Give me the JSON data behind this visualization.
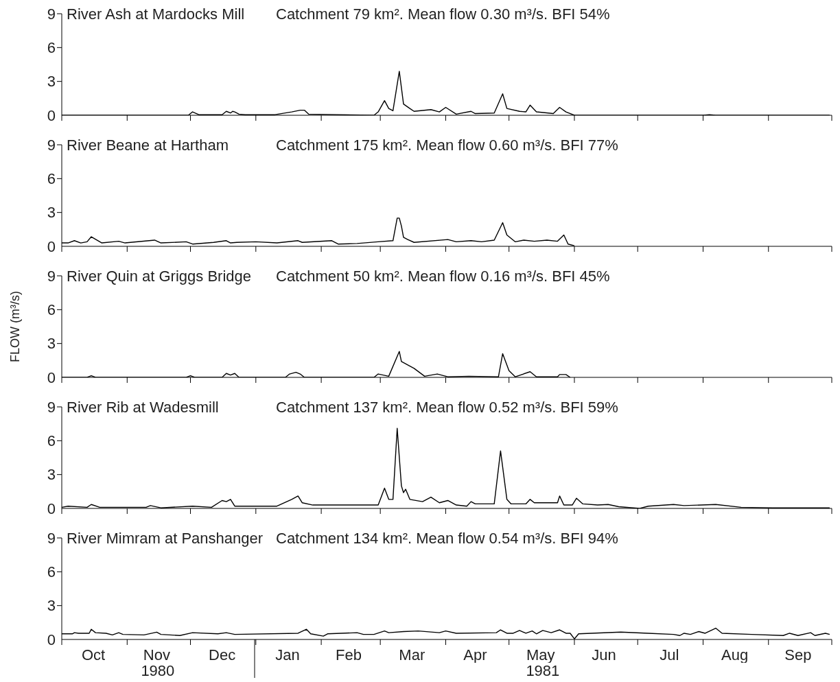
{
  "chart_data": [
    {
      "type": "line",
      "title": "River Ash at Mardocks Mill",
      "subtitle": "Catchment 79 km². Mean flow 0.30 m³/s. BFI 54%",
      "color": "#000000",
      "x": [
        "1980-10-01",
        "1980-11-30",
        "1980-12-02",
        "1980-12-05",
        "1980-12-16",
        "1980-12-18",
        "1980-12-20",
        "1980-12-21",
        "1980-12-22",
        "1980-12-24",
        "1980-12-27",
        "1981-01-10",
        "1981-01-18",
        "1981-01-22",
        "1981-01-24",
        "1981-01-26",
        "1981-02-26",
        "1981-02-28",
        "1981-03-03",
        "1981-03-05",
        "1981-03-07",
        "1981-03-10",
        "1981-03-12",
        "1981-03-15",
        "1981-03-17",
        "1981-03-25",
        "1981-03-29",
        "1981-04-01",
        "1981-04-06",
        "1981-04-13",
        "1981-04-15",
        "1981-04-24",
        "1981-04-28",
        "1981-04-30",
        "1981-05-06",
        "1981-05-09",
        "1981-05-11",
        "1981-05-14",
        "1981-05-22",
        "1981-05-25",
        "1981-05-28",
        "1981-06-01",
        "1981-08-01",
        "1981-08-04",
        "1981-08-07",
        "1981-09-30"
      ],
      "values": [
        0,
        0,
        0.3,
        0.05,
        0.05,
        0.35,
        0.2,
        0.35,
        0.3,
        0.1,
        0.05,
        0.05,
        0.3,
        0.45,
        0.45,
        0.1,
        0,
        0.3,
        1.3,
        0.6,
        0.4,
        3.9,
        1.0,
        0.6,
        0.35,
        0.5,
        0.3,
        0.7,
        0.1,
        0.35,
        0.15,
        0.2,
        1.9,
        0.6,
        0.35,
        0.3,
        0.9,
        0.3,
        0.15,
        0.7,
        0.3,
        0,
        0,
        0.05,
        0,
        0
      ],
      "xlim": [
        "1980-10-01",
        "1981-10-01"
      ],
      "ylim": [
        0,
        9
      ],
      "yticks": [
        0,
        3,
        6,
        9
      ],
      "tick_labels": "y",
      "xticks": [
        {
          "value": "1980-10-01",
          "label": null
        },
        {
          "value": "1980-11-01",
          "label": null
        },
        {
          "value": "1980-12-01",
          "label": null
        },
        {
          "value": "1981-01-01",
          "label": null
        },
        {
          "value": "1981-02-01",
          "label": null
        },
        {
          "value": "1981-03-01",
          "label": null
        },
        {
          "value": "1981-04-01",
          "label": null
        },
        {
          "value": "1981-05-01",
          "label": null
        },
        {
          "value": "1981-06-01",
          "label": null
        },
        {
          "value": "1981-07-01",
          "label": null
        },
        {
          "value": "1981-08-01",
          "label": null
        },
        {
          "value": "1981-09-01",
          "label": null
        },
        {
          "value": "1981-10-01",
          "label": null
        }
      ]
    },
    {
      "type": "line",
      "title": "River Beane at Hartham",
      "subtitle": "Catchment 175 km². Mean flow 0.60 m³/s. BFI 77%",
      "color": "#000000",
      "x": [
        "1980-10-01",
        "1980-10-04",
        "1980-10-07",
        "1980-10-10",
        "1980-10-13",
        "1980-10-15",
        "1980-10-20",
        "1980-10-28",
        "1980-10-31",
        "1980-11-14",
        "1980-11-17",
        "1980-11-29",
        "1980-12-02",
        "1980-12-12",
        "1980-12-18",
        "1980-12-20",
        "1980-12-23",
        "1981-01-01",
        "1981-01-11",
        "1981-01-21",
        "1981-01-23",
        "1981-02-06",
        "1981-02-09",
        "1981-02-18",
        "1981-02-28",
        "1981-03-07",
        "1981-03-09",
        "1981-03-10",
        "1981-03-11",
        "1981-03-12",
        "1981-03-14",
        "1981-03-17",
        "1981-04-02",
        "1981-04-06",
        "1981-04-13",
        "1981-04-18",
        "1981-04-24",
        "1981-04-28",
        "1981-04-30",
        "1981-05-04",
        "1981-05-08",
        "1981-05-13",
        "1981-05-19",
        "1981-05-24",
        "1981-05-27",
        "1981-05-29",
        "1981-06-01"
      ],
      "values": [
        0.3,
        0.3,
        0.5,
        0.3,
        0.4,
        0.85,
        0.3,
        0.45,
        0.3,
        0.55,
        0.3,
        0.4,
        0.2,
        0.35,
        0.5,
        0.3,
        0.35,
        0.4,
        0.3,
        0.5,
        0.35,
        0.5,
        0.2,
        0.25,
        0.4,
        0.5,
        2.5,
        2.5,
        1.8,
        0.8,
        0.6,
        0.35,
        0.6,
        0.4,
        0.5,
        0.4,
        0.55,
        2.1,
        1.0,
        0.4,
        0.55,
        0.45,
        0.55,
        0.45,
        1.0,
        0.2,
        0.05
      ],
      "xlim": [
        "1980-10-01",
        "1981-10-01"
      ],
      "ylim": [
        0,
        9
      ],
      "yticks": [
        0,
        3,
        6,
        9
      ],
      "tick_labels": "y",
      "xticks": [
        {
          "value": "1980-10-01",
          "label": null
        },
        {
          "value": "1980-11-01",
          "label": null
        },
        {
          "value": "1980-12-01",
          "label": null
        },
        {
          "value": "1981-01-01",
          "label": null
        },
        {
          "value": "1981-02-01",
          "label": null
        },
        {
          "value": "1981-03-01",
          "label": null
        },
        {
          "value": "1981-04-01",
          "label": null
        },
        {
          "value": "1981-05-01",
          "label": null
        },
        {
          "value": "1981-06-01",
          "label": null
        },
        {
          "value": "1981-07-01",
          "label": null
        },
        {
          "value": "1981-08-01",
          "label": null
        },
        {
          "value": "1981-09-01",
          "label": null
        },
        {
          "value": "1981-10-01",
          "label": null
        }
      ]
    },
    {
      "type": "line",
      "title": "River Quin at Griggs Bridge",
      "subtitle": "Catchment 50 km². Mean flow 0.16 m³/s. BFI 45%",
      "ylabel": "FLOW (m³/s)",
      "color": "#000000",
      "x": [
        "1980-10-01",
        "1980-10-13",
        "1980-10-15",
        "1980-10-17",
        "1980-11-29",
        "1980-12-01",
        "1980-12-03",
        "1980-12-16",
        "1980-12-18",
        "1980-12-20",
        "1980-12-22",
        "1980-12-24",
        "1981-01-15",
        "1981-01-17",
        "1981-01-20",
        "1981-01-22",
        "1981-01-24",
        "1981-02-26",
        "1981-02-28",
        "1981-03-05",
        "1981-03-10",
        "1981-03-11",
        "1981-03-17",
        "1981-03-22",
        "1981-03-28",
        "1981-04-02",
        "1981-04-12",
        "1981-04-26",
        "1981-04-28",
        "1981-05-01",
        "1981-05-04",
        "1981-05-11",
        "1981-05-14",
        "1981-05-24",
        "1981-05-25",
        "1981-05-28",
        "1981-05-30"
      ],
      "values": [
        0,
        0,
        0.15,
        0,
        0,
        0.15,
        0,
        0,
        0.35,
        0.2,
        0.35,
        0,
        0,
        0.3,
        0.45,
        0.3,
        0,
        0,
        0.3,
        0.1,
        2.3,
        1.4,
        0.8,
        0.1,
        0.3,
        0.05,
        0.1,
        0.05,
        2.1,
        0.6,
        0.05,
        0.5,
        0.05,
        0.05,
        0.25,
        0.25,
        0
      ],
      "xlim": [
        "1980-10-01",
        "1981-10-01"
      ],
      "ylim": [
        0,
        9
      ],
      "yticks": [
        0,
        3,
        6,
        9
      ],
      "tick_labels": "y",
      "xticks": [
        {
          "value": "1980-10-01",
          "label": null
        },
        {
          "value": "1980-11-01",
          "label": null
        },
        {
          "value": "1980-12-01",
          "label": null
        },
        {
          "value": "1981-01-01",
          "label": null
        },
        {
          "value": "1981-02-01",
          "label": null
        },
        {
          "value": "1981-03-01",
          "label": null
        },
        {
          "value": "1981-04-01",
          "label": null
        },
        {
          "value": "1981-05-01",
          "label": null
        },
        {
          "value": "1981-06-01",
          "label": null
        },
        {
          "value": "1981-07-01",
          "label": null
        },
        {
          "value": "1981-08-01",
          "label": null
        },
        {
          "value": "1981-09-01",
          "label": null
        },
        {
          "value": "1981-10-01",
          "label": null
        }
      ]
    },
    {
      "type": "line",
      "title": "River Rib at Wadesmill",
      "subtitle": "Catchment 137 km². Mean flow 0.52 m³/s. BFI 59%",
      "color": "#000000",
      "x": [
        "1980-10-01",
        "1980-10-04",
        "1980-10-13",
        "1980-10-15",
        "1980-10-19",
        "1980-11-10",
        "1980-11-12",
        "1980-11-17",
        "1980-12-02",
        "1980-12-11",
        "1980-12-16",
        "1980-12-18",
        "1980-12-20",
        "1980-12-22",
        "1981-01-11",
        "1981-01-18",
        "1981-01-21",
        "1981-01-23",
        "1981-01-28",
        "1981-02-28",
        "1981-03-03",
        "1981-03-05",
        "1981-03-07",
        "1981-03-09",
        "1981-03-11",
        "1981-03-12",
        "1981-03-13",
        "1981-03-15",
        "1981-03-21",
        "1981-03-25",
        "1981-03-29",
        "1981-04-02",
        "1981-04-06",
        "1981-04-11",
        "1981-04-13",
        "1981-04-15",
        "1981-04-24",
        "1981-04-27",
        "1981-04-30",
        "1981-05-02",
        "1981-05-09",
        "1981-05-11",
        "1981-05-13",
        "1981-05-24",
        "1981-05-25",
        "1981-05-27",
        "1981-05-31",
        "1981-06-02",
        "1981-06-05",
        "1981-06-12",
        "1981-06-17",
        "1981-06-22",
        "1981-07-02",
        "1981-07-06",
        "1981-07-18",
        "1981-07-23",
        "1981-08-07",
        "1981-08-19",
        "1981-09-03",
        "1981-09-30"
      ],
      "values": [
        0.1,
        0.2,
        0.1,
        0.35,
        0.1,
        0.1,
        0.25,
        0.05,
        0.2,
        0.1,
        0.7,
        0.6,
        0.8,
        0.2,
        0.2,
        0.8,
        1.1,
        0.5,
        0.3,
        0.3,
        1.8,
        0.8,
        0.8,
        7.1,
        2.0,
        1.4,
        1.7,
        0.8,
        0.6,
        1.0,
        0.5,
        0.7,
        0.3,
        0.2,
        0.6,
        0.4,
        0.4,
        5.1,
        0.8,
        0.4,
        0.4,
        0.8,
        0.5,
        0.5,
        1.1,
        0.3,
        0.3,
        0.9,
        0.4,
        0.3,
        0.35,
        0.15,
        0,
        0.2,
        0.35,
        0.25,
        0.35,
        0.1,
        0.05,
        0.05
      ],
      "xlim": [
        "1980-10-01",
        "1981-10-01"
      ],
      "ylim": [
        0,
        9
      ],
      "yticks": [
        0,
        3,
        6,
        9
      ],
      "tick_labels": "y",
      "xticks": [
        {
          "value": "1980-10-01",
          "label": null
        },
        {
          "value": "1980-11-01",
          "label": null
        },
        {
          "value": "1980-12-01",
          "label": null
        },
        {
          "value": "1981-01-01",
          "label": null
        },
        {
          "value": "1981-02-01",
          "label": null
        },
        {
          "value": "1981-03-01",
          "label": null
        },
        {
          "value": "1981-04-01",
          "label": null
        },
        {
          "value": "1981-05-01",
          "label": null
        },
        {
          "value": "1981-06-01",
          "label": null
        },
        {
          "value": "1981-07-01",
          "label": null
        },
        {
          "value": "1981-08-01",
          "label": null
        },
        {
          "value": "1981-09-01",
          "label": null
        },
        {
          "value": "1981-10-01",
          "label": null
        }
      ]
    },
    {
      "type": "line",
      "title": "River Mimram at Panshanger",
      "subtitle": "Catchment 134 km². Mean flow 0.54 m³/s. BFI 94%",
      "color": "#000000",
      "annotations": [
        "1980",
        "1981"
      ],
      "x": [
        "1980-10-01",
        "1980-10-06",
        "1980-10-07",
        "1980-10-09",
        "1980-10-14",
        "1980-10-15",
        "1980-10-17",
        "1980-10-22",
        "1980-10-25",
        "1980-10-28",
        "1980-10-30",
        "1980-11-09",
        "1980-11-15",
        "1980-11-17",
        "1980-11-26",
        "1980-12-02",
        "1980-12-14",
        "1980-12-18",
        "1980-12-22",
        "1981-01-21",
        "1981-01-25",
        "1981-01-27",
        "1981-02-02",
        "1981-02-04",
        "1981-02-18",
        "1981-02-21",
        "1981-02-26",
        "1981-03-03",
        "1981-03-05",
        "1981-03-12",
        "1981-03-19",
        "1981-03-29",
        "1981-04-01",
        "1981-04-06",
        "1981-04-25",
        "1981-04-27",
        "1981-04-30",
        "1981-05-03",
        "1981-05-06",
        "1981-05-09",
        "1981-05-12",
        "1981-05-14",
        "1981-05-17",
        "1981-05-21",
        "1981-05-25",
        "1981-05-28",
        "1981-05-30",
        "1981-06-01",
        "1981-06-03",
        "1981-06-09",
        "1981-06-23",
        "1981-07-06",
        "1981-07-18",
        "1981-07-21",
        "1981-07-23",
        "1981-07-26",
        "1981-07-30",
        "1981-08-02",
        "1981-08-07",
        "1981-08-10",
        "1981-08-24",
        "1981-09-08",
        "1981-09-11",
        "1981-09-15",
        "1981-09-21",
        "1981-09-23",
        "1981-09-28",
        "1981-09-30"
      ],
      "values": [
        0.5,
        0.5,
        0.6,
        0.55,
        0.55,
        0.9,
        0.6,
        0.55,
        0.4,
        0.6,
        0.45,
        0.4,
        0.65,
        0.45,
        0.35,
        0.6,
        0.5,
        0.6,
        0.45,
        0.55,
        0.9,
        0.5,
        0.3,
        0.5,
        0.6,
        0.45,
        0.45,
        0.75,
        0.6,
        0.7,
        0.75,
        0.6,
        0.75,
        0.55,
        0.6,
        0.85,
        0.55,
        0.55,
        0.8,
        0.55,
        0.75,
        0.5,
        0.8,
        0.6,
        0.85,
        0.55,
        0.55,
        0.05,
        0.5,
        0.55,
        0.65,
        0.55,
        0.45,
        0.35,
        0.55,
        0.45,
        0.7,
        0.55,
        1.0,
        0.55,
        0.45,
        0.35,
        0.55,
        0.35,
        0.6,
        0.35,
        0.55,
        0.45
      ],
      "xlim": [
        "1980-10-01",
        "1981-10-01"
      ],
      "ylim": [
        0,
        9
      ],
      "yticks": [
        0,
        3,
        6,
        9
      ],
      "xticks": [
        {
          "value": "1980-10-01",
          "label": null
        },
        {
          "value": "1980-10-16",
          "label": "Oct"
        },
        {
          "value": "1980-11-01",
          "label": null
        },
        {
          "value": "1980-11-15",
          "label": "Nov"
        },
        {
          "value": "1980-12-01",
          "label": null
        },
        {
          "value": "1980-12-16",
          "label": "Dec"
        },
        {
          "value": "1981-01-01",
          "label": null
        },
        {
          "value": "1981-01-16",
          "label": "Jan"
        },
        {
          "value": "1981-02-01",
          "label": null
        },
        {
          "value": "1981-02-14",
          "label": "Feb"
        },
        {
          "value": "1981-03-01",
          "label": null
        },
        {
          "value": "1981-03-16",
          "label": "Mar"
        },
        {
          "value": "1981-04-01",
          "label": null
        },
        {
          "value": "1981-04-15",
          "label": "Apr"
        },
        {
          "value": "1981-05-01",
          "label": null
        },
        {
          "value": "1981-05-16",
          "label": "May"
        },
        {
          "value": "1981-06-01",
          "label": null
        },
        {
          "value": "1981-06-15",
          "label": "Jun"
        },
        {
          "value": "1981-07-01",
          "label": null
        },
        {
          "value": "1981-07-16",
          "label": "Jul"
        },
        {
          "value": "1981-08-01",
          "label": null
        },
        {
          "value": "1981-08-16",
          "label": "Aug"
        },
        {
          "value": "1981-09-01",
          "label": null
        },
        {
          "value": "1981-09-15",
          "label": "Sep"
        },
        {
          "value": "1981-10-01",
          "label": null
        }
      ]
    }
  ]
}
